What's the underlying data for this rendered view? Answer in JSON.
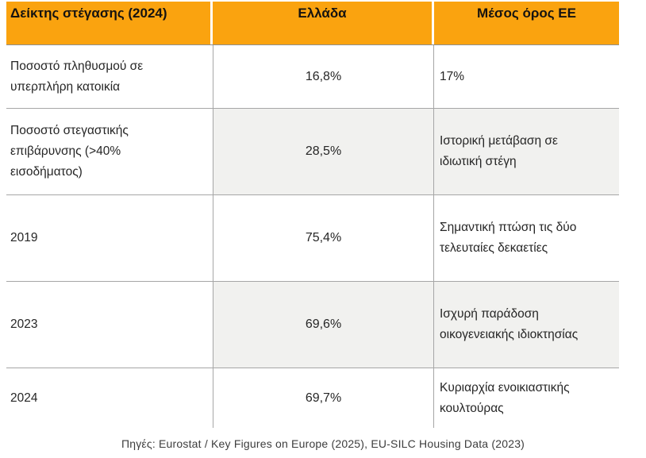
{
  "chart_data": {
    "type": "table",
    "title": "Δείκτης στέγασης (2024)",
    "columns": [
      "Δείκτης στέγασης (2024)",
      "Ελλάδα",
      "Μέσος όρος ΕΕ"
    ],
    "rows": [
      [
        "Ποσοστό πληθυσμού σε υπερπλήρη κατοικία",
        "16,8%",
        "17%"
      ],
      [
        "Ποσοστό στεγαστικής επιβάρυνσης (>40% εισοδήματος)",
        "28,5%",
        "Ιστορική μετάβαση σε ιδιωτική στέγη"
      ],
      [
        "2019",
        "75,4%",
        "Σημαντική πτώση τις δύο τελευταίες δεκαετίες"
      ],
      [
        "2023",
        "69,6%",
        "Ισχυρή παράδοση οικογενειακής ιδιοκτησίας"
      ],
      [
        "2024",
        "69,7%",
        "Κυριαρχία ενοικιαστικής κουλτούρας"
      ]
    ],
    "source": "Πηγές: Eurostat / Key Figures on Europe (2025), EU-SILC Housing Data (2023)",
    "layout": {
      "striped_row_indexes": [
        1,
        3
      ],
      "legend": "none",
      "grid": "horizontal-and-internal-vertical-borders"
    },
    "colors": {
      "header_background": "#FAA30F",
      "stripe_background": "#F1F1EF",
      "border": "#A6A6A6",
      "header_text": "#151310",
      "body_text": "#262626",
      "source_text": "#3D3D3D"
    }
  }
}
